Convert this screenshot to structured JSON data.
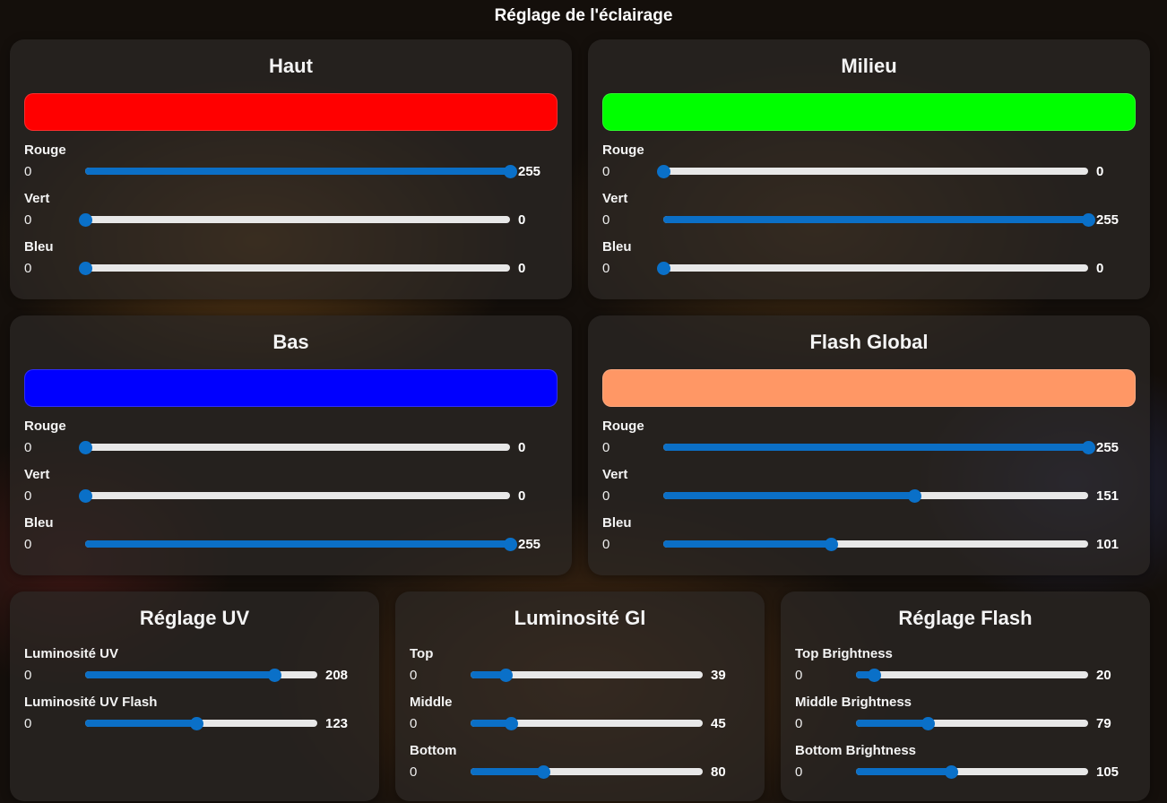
{
  "page_title": "Réglage de l'éclairage",
  "color_panels": [
    {
      "title": "Haut",
      "swatch_color": "#ff0000",
      "sliders": [
        {
          "label": "Rouge",
          "min": "0",
          "max": 255,
          "value": "255"
        },
        {
          "label": "Vert",
          "min": "0",
          "max": 255,
          "value": "0"
        },
        {
          "label": "Bleu",
          "min": "0",
          "max": 255,
          "value": "0"
        }
      ]
    },
    {
      "title": "Milieu",
      "swatch_color": "#00ff00",
      "sliders": [
        {
          "label": "Rouge",
          "min": "0",
          "max": 255,
          "value": "0"
        },
        {
          "label": "Vert",
          "min": "0",
          "max": 255,
          "value": "255"
        },
        {
          "label": "Bleu",
          "min": "0",
          "max": 255,
          "value": "0"
        }
      ]
    },
    {
      "title": "Bas",
      "swatch_color": "#0000ff",
      "sliders": [
        {
          "label": "Rouge",
          "min": "0",
          "max": 255,
          "value": "0"
        },
        {
          "label": "Vert",
          "min": "0",
          "max": 255,
          "value": "0"
        },
        {
          "label": "Bleu",
          "min": "0",
          "max": 255,
          "value": "255"
        }
      ]
    },
    {
      "title": "Flash Global",
      "swatch_color": "#ff9765",
      "sliders": [
        {
          "label": "Rouge",
          "min": "0",
          "max": 255,
          "value": "255"
        },
        {
          "label": "Vert",
          "min": "0",
          "max": 255,
          "value": "151"
        },
        {
          "label": "Bleu",
          "min": "0",
          "max": 255,
          "value": "101"
        }
      ]
    }
  ],
  "settings_panels": [
    {
      "title": "Réglage UV",
      "sliders": [
        {
          "label": "Luminosité UV",
          "min": "0",
          "max": 255,
          "value": "208"
        },
        {
          "label": "Luminosité UV Flash",
          "min": "0",
          "max": 255,
          "value": "123"
        }
      ]
    },
    {
      "title": "Luminosité Gl",
      "sliders": [
        {
          "label": "Top",
          "min": "0",
          "max": 255,
          "value": "39"
        },
        {
          "label": "Middle",
          "min": "0",
          "max": 255,
          "value": "45"
        },
        {
          "label": "Bottom",
          "min": "0",
          "max": 255,
          "value": "80"
        }
      ]
    },
    {
      "title": "Réglage Flash",
      "sliders": [
        {
          "label": "Top Brightness",
          "min": "0",
          "max": 255,
          "value": "20"
        },
        {
          "label": "Middle Brightness",
          "min": "0",
          "max": 255,
          "value": "79"
        },
        {
          "label": "Bottom Brightness",
          "min": "0",
          "max": 255,
          "value": "105"
        }
      ]
    }
  ],
  "colors": {
    "slider_fill": "#0b6fc6",
    "slider_track": "#e8e8e8",
    "panel_bg": "rgba(45,40,38,0.72)"
  }
}
